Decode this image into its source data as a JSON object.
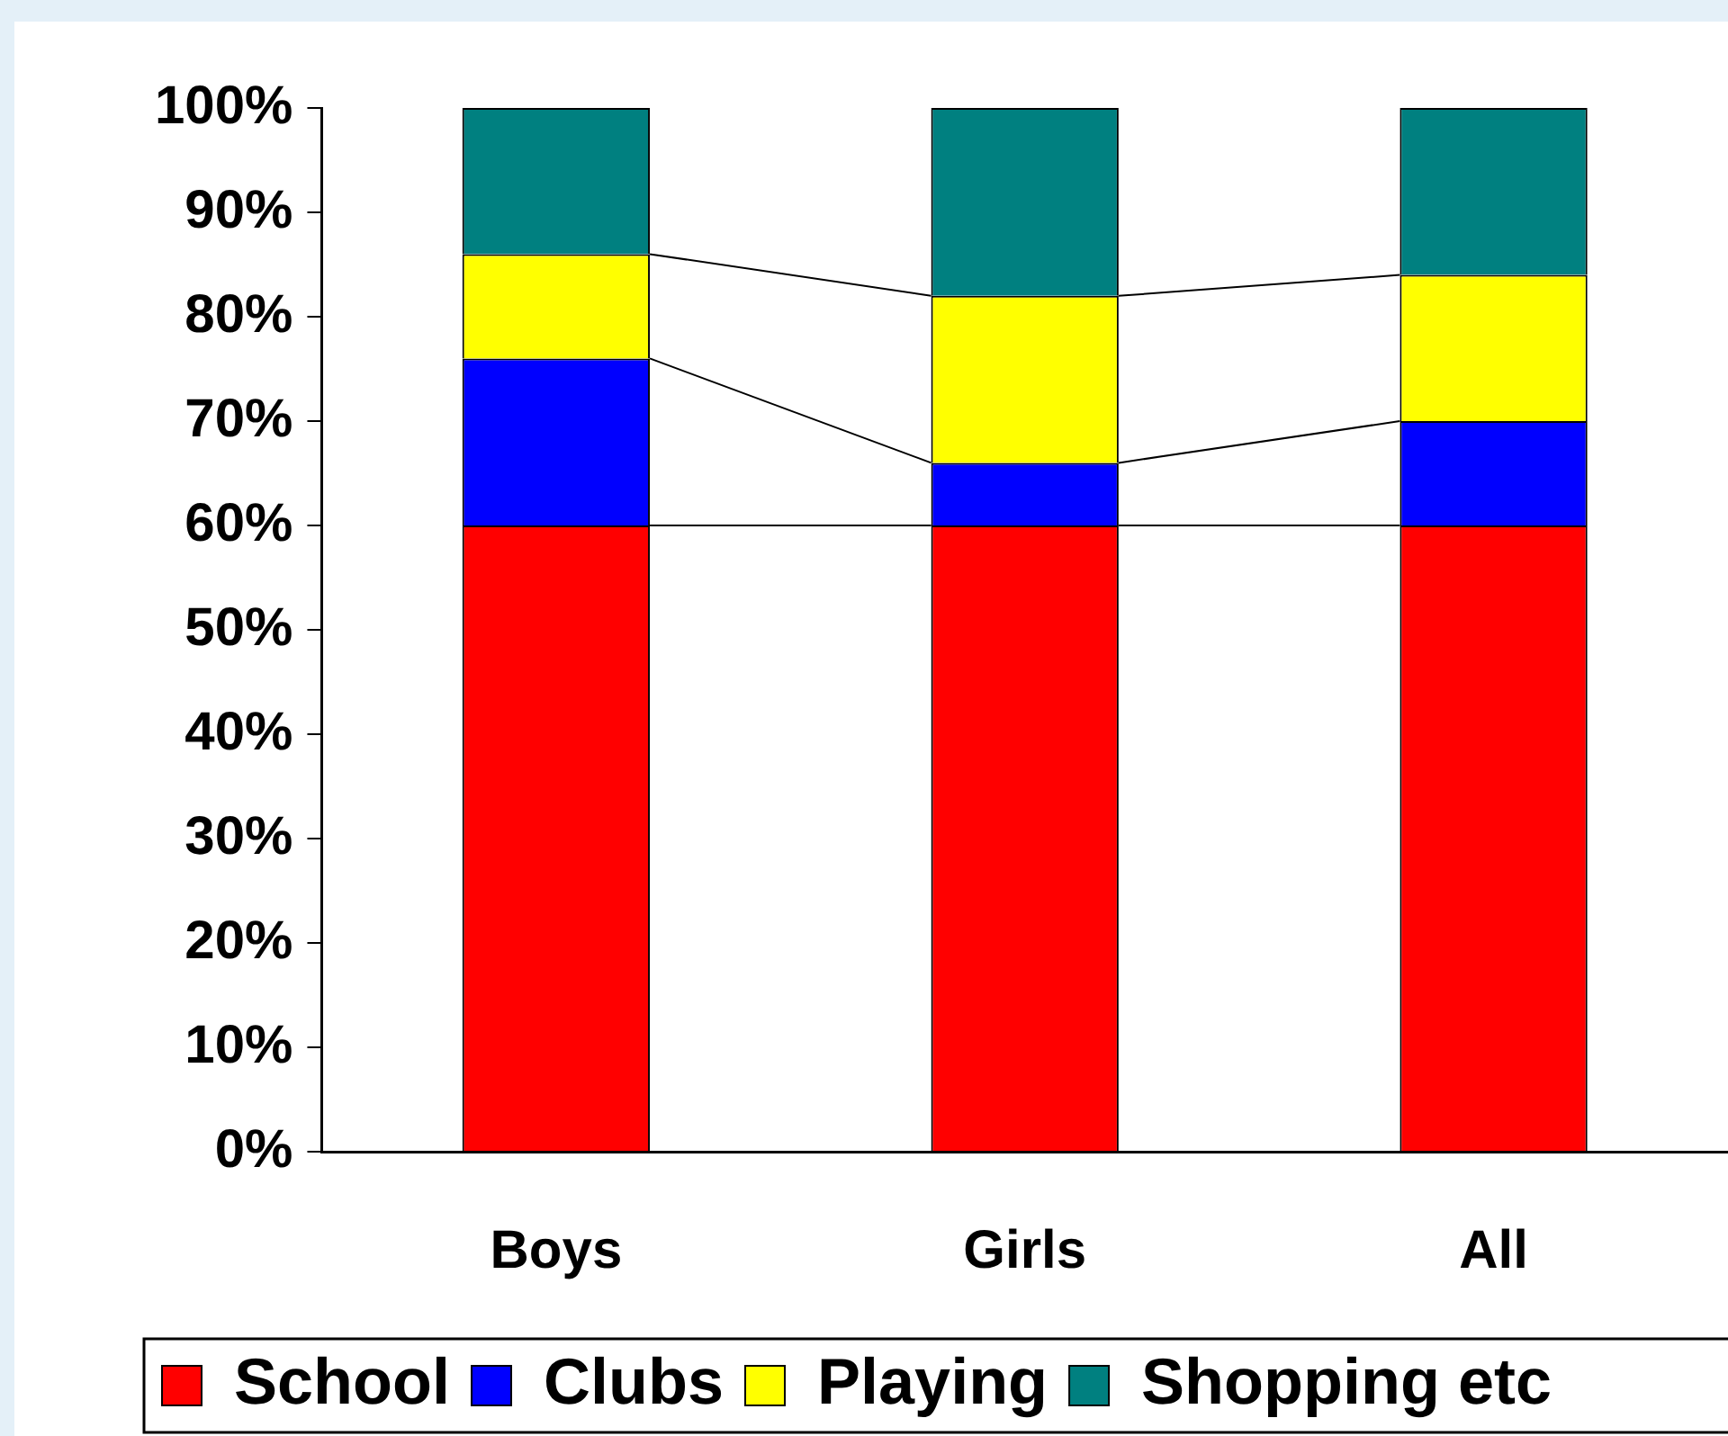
{
  "chart_data": {
    "type": "bar",
    "stacked": true,
    "categories": [
      "Boys",
      "Girls",
      "All"
    ],
    "series": [
      {
        "name": "School",
        "color": "#ff0000",
        "values": [
          60,
          60,
          60
        ]
      },
      {
        "name": "Clubs",
        "color": "#0000ff",
        "values": [
          16,
          6,
          10
        ]
      },
      {
        "name": "Playing",
        "color": "#ffff00",
        "values": [
          10,
          16,
          14
        ]
      },
      {
        "name": "Shopping etc",
        "color": "#008080",
        "values": [
          14,
          18,
          16
        ]
      }
    ],
    "ylim": [
      0,
      100
    ],
    "yticks": [
      {
        "value": 0,
        "label": "0%"
      },
      {
        "value": 10,
        "label": "10%"
      },
      {
        "value": 20,
        "label": "20%"
      },
      {
        "value": 30,
        "label": "30%"
      },
      {
        "value": 40,
        "label": "40%"
      },
      {
        "value": 50,
        "label": "50%"
      },
      {
        "value": 60,
        "label": "60%"
      },
      {
        "value": 70,
        "label": "70%"
      },
      {
        "value": 80,
        "label": "80%"
      },
      {
        "value": 90,
        "label": "90%"
      },
      {
        "value": 100,
        "label": "100%"
      }
    ],
    "grid": false,
    "legend": "bottom"
  }
}
